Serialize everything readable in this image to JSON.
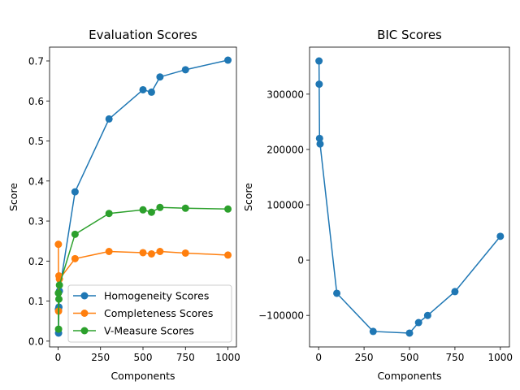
{
  "chart_data": [
    {
      "type": "line",
      "title": "Evaluation Scores",
      "xlabel": "Components",
      "ylabel": "Score",
      "xlim": [
        -50,
        1050
      ],
      "ylim": [
        -0.0145,
        0.7345
      ],
      "xticks": [
        0,
        250,
        500,
        750,
        1000
      ],
      "yticks": [
        0.0,
        0.1,
        0.2,
        0.3,
        0.4,
        0.5,
        0.6,
        0.7
      ],
      "ytick_labels": [
        "0.0",
        "0.1",
        "0.2",
        "0.3",
        "0.4",
        "0.5",
        "0.6",
        "0.7"
      ],
      "legend_position": "lower-right",
      "x": [
        2,
        3,
        5,
        8,
        100,
        300,
        500,
        550,
        600,
        750,
        1000
      ],
      "series": [
        {
          "name": "Homogeneity Scores",
          "color": "#1f77b4",
          "values": [
            0.08,
            0.02,
            0.085,
            0.125,
            0.373,
            0.555,
            0.628,
            0.622,
            0.66,
            0.678,
            0.702
          ]
        },
        {
          "name": "Completeness Scores",
          "color": "#ff7f0e",
          "values": [
            0.242,
            0.075,
            0.163,
            0.155,
            0.206,
            0.224,
            0.221,
            0.218,
            0.224,
            0.22,
            0.215
          ]
        },
        {
          "name": "V-Measure Scores",
          "color": "#2ca02c",
          "values": [
            0.12,
            0.03,
            0.105,
            0.14,
            0.267,
            0.319,
            0.328,
            0.322,
            0.334,
            0.332,
            0.33
          ]
        }
      ]
    },
    {
      "type": "line",
      "title": "BIC Scores",
      "xlabel": "Components",
      "ylabel": "Score",
      "xlim": [
        -50,
        1050
      ],
      "ylim": [
        -157000,
        385000
      ],
      "xticks": [
        0,
        250,
        500,
        750,
        1000
      ],
      "yticks": [
        -100000,
        0,
        100000,
        200000,
        300000
      ],
      "ytick_labels": [
        "−100000",
        "0",
        "100000",
        "200000",
        "300000"
      ],
      "x": [
        2,
        3,
        5,
        8,
        100,
        300,
        500,
        550,
        600,
        750,
        1000
      ],
      "series": [
        {
          "name": "BIC",
          "color": "#1f77b4",
          "values": [
            360000,
            318000,
            220000,
            210000,
            -60000,
            -129000,
            -132000,
            -113000,
            -100000,
            -57000,
            43000
          ]
        }
      ]
    }
  ]
}
